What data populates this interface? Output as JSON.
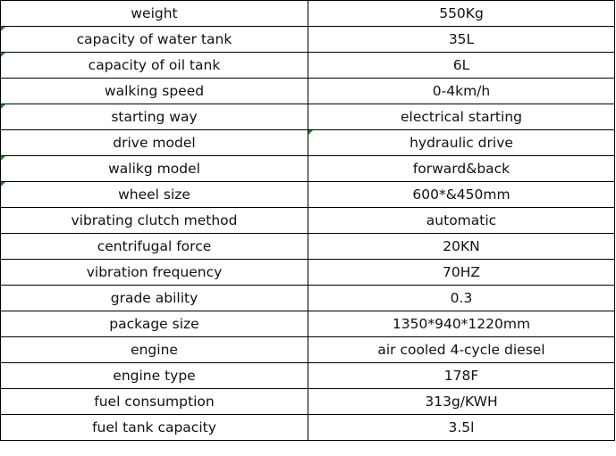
{
  "specs": [
    {
      "label": "weight",
      "value": "550Kg"
    },
    {
      "label": "capacity of water tank",
      "value": "35L"
    },
    {
      "label": "capacity of oil tank",
      "value": "6L"
    },
    {
      "label": "walking speed",
      "value": "0-4km/h"
    },
    {
      "label": "starting way",
      "value": "electrical starting"
    },
    {
      "label": "drive model",
      "value": "hydraulic drive"
    },
    {
      "label": "walikg model",
      "value": "forward&back"
    },
    {
      "label": "wheel size",
      "value": "600*&450mm"
    },
    {
      "label": "vibrating clutch method",
      "value": "automatic"
    },
    {
      "label": "centrifugal force",
      "value": "20KN"
    },
    {
      "label": "vibration frequency",
      "value": "70HZ"
    },
    {
      "label": "grade ability",
      "value": "0.3"
    },
    {
      "label": "package size",
      "value": "1350*940*1220mm"
    },
    {
      "label": "engine",
      "value": "air cooled 4-cycle diesel"
    },
    {
      "label": "engine type",
      "value": "178F"
    },
    {
      "label": "fuel consumption",
      "value": "313g/KWH"
    },
    {
      "label": "fuel tank capacity",
      "value": "3.5l"
    }
  ],
  "marker_color": "#1a8a1a"
}
